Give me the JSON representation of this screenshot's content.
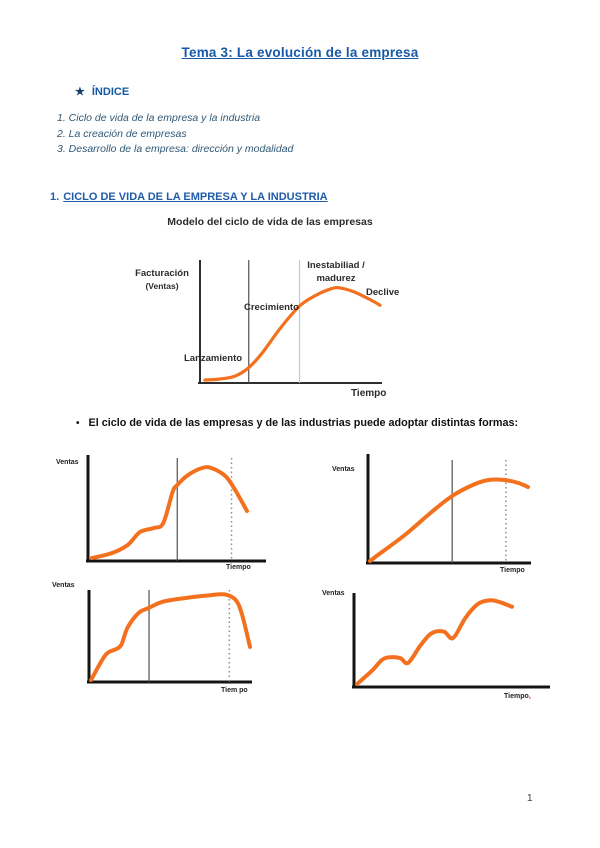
{
  "page": {
    "title": "Tema 3: La evolución de la empresa",
    "page_number": "1"
  },
  "index": {
    "star": "★",
    "heading": "ÍNDICE",
    "items": [
      "1. Ciclo de vida de la empresa y la industria",
      "2. La creación de empresas",
      "3. Desarrollo de la empresa: dirección y modalidad"
    ]
  },
  "section": {
    "number": "1.",
    "heading": "CICLO DE VIDA DE LA EMPRESA Y LA INDUSTRIA"
  },
  "bullet_paragraph": {
    "bullet": "•",
    "text": "El ciclo de vida de las empresas y de las industrias puede adoptar distintas formas:"
  },
  "colors": {
    "title_blue": "#1659a8",
    "heading_blue": "#1f5ba8",
    "index_navy": "#2f5876",
    "curve_orange": "#f3701e",
    "red_mark": "#e0331f"
  },
  "chart_data": [
    {
      "id": "modelo-ciclo-vida",
      "type": "line",
      "title": "Modelo del ciclo de vida de las empresas",
      "ylabel_line1": "Facturación",
      "ylabel_line2": "(Ventas)",
      "xlabel": "Tiempo",
      "annotations": {
        "launch": "Lanzamiento",
        "growth": "Crecimiento",
        "maturity_line1": "Inestabiliad /",
        "maturity_line2": "madurez",
        "decline": "Declive"
      },
      "x_range": [
        0,
        100
      ],
      "y_range": [
        0,
        100
      ],
      "grid": false,
      "points": [
        [
          0,
          1
        ],
        [
          8,
          2
        ],
        [
          17,
          5
        ],
        [
          25,
          14
        ],
        [
          33,
          30
        ],
        [
          43,
          55
        ],
        [
          54,
          78
        ],
        [
          63,
          89
        ],
        [
          72,
          96
        ],
        [
          77,
          97
        ],
        [
          85,
          93
        ],
        [
          93,
          86
        ],
        [
          100,
          79
        ]
      ],
      "dividers": [
        {
          "x": 25,
          "style": "solid"
        },
        {
          "x": 54,
          "style": "light"
        }
      ]
    },
    {
      "id": "forma-1",
      "type": "line",
      "ylabel": "Ventas",
      "xlabel": "Tiempo",
      "x_range": [
        0,
        100
      ],
      "y_range": [
        0,
        100
      ],
      "grid": false,
      "points": [
        [
          0,
          2
        ],
        [
          13,
          7
        ],
        [
          23,
          15
        ],
        [
          31,
          28
        ],
        [
          40,
          32
        ],
        [
          46,
          37
        ],
        [
          52,
          68
        ],
        [
          55,
          75
        ],
        [
          62,
          85
        ],
        [
          71,
          92
        ],
        [
          77,
          92
        ],
        [
          86,
          84
        ],
        [
          92,
          71
        ],
        [
          100,
          49
        ]
      ],
      "dividers": [
        {
          "x": 55,
          "style": "solid"
        },
        {
          "x": 90,
          "style": "dotted"
        }
      ]
    },
    {
      "id": "forma-2",
      "type": "line",
      "ylabel": "Ventas",
      "xlabel": "Tiempo",
      "x_range": [
        0,
        100
      ],
      "y_range": [
        0,
        100
      ],
      "grid": false,
      "points": [
        [
          0,
          1
        ],
        [
          5,
          7
        ],
        [
          22,
          27
        ],
        [
          39,
          50
        ],
        [
          52,
          66
        ],
        [
          65,
          77
        ],
        [
          75,
          82
        ],
        [
          85,
          82
        ],
        [
          94,
          79
        ],
        [
          100,
          75
        ]
      ],
      "dividers": [
        {
          "x": 52,
          "style": "solid"
        },
        {
          "x": 86,
          "style": "dotted"
        }
      ]
    },
    {
      "id": "forma-3",
      "type": "line",
      "ylabel": "Ventas",
      "xlabel": "Tiem po",
      "x_range": [
        0,
        100
      ],
      "y_range": [
        0,
        100
      ],
      "grid": false,
      "points": [
        [
          0,
          0
        ],
        [
          9,
          27
        ],
        [
          15,
          33
        ],
        [
          19,
          38
        ],
        [
          23,
          57
        ],
        [
          30,
          73
        ],
        [
          36,
          78
        ],
        [
          45,
          85
        ],
        [
          59,
          89
        ],
        [
          74,
          92
        ],
        [
          84,
          93
        ],
        [
          91,
          87
        ],
        [
          95,
          71
        ],
        [
          100,
          36
        ]
      ],
      "dividers": [
        {
          "x": 36.5,
          "style": "solid"
        },
        {
          "x": 87,
          "style": "dotted"
        }
      ]
    },
    {
      "id": "forma-4",
      "type": "line",
      "ylabel": "Ventas",
      "xlabel": "Tiempo",
      "xlabel_mark": ",",
      "x_range": [
        0,
        100
      ],
      "y_range": [
        0,
        100
      ],
      "grid": false,
      "points": [
        [
          0,
          0
        ],
        [
          10,
          15
        ],
        [
          16,
          26
        ],
        [
          21,
          29
        ],
        [
          28,
          28
        ],
        [
          33,
          23
        ],
        [
          41,
          42
        ],
        [
          48,
          55
        ],
        [
          56,
          57
        ],
        [
          62,
          50
        ],
        [
          70,
          72
        ],
        [
          78,
          87
        ],
        [
          86,
          91
        ],
        [
          92,
          89
        ],
        [
          100,
          84
        ]
      ],
      "dividers": []
    }
  ]
}
